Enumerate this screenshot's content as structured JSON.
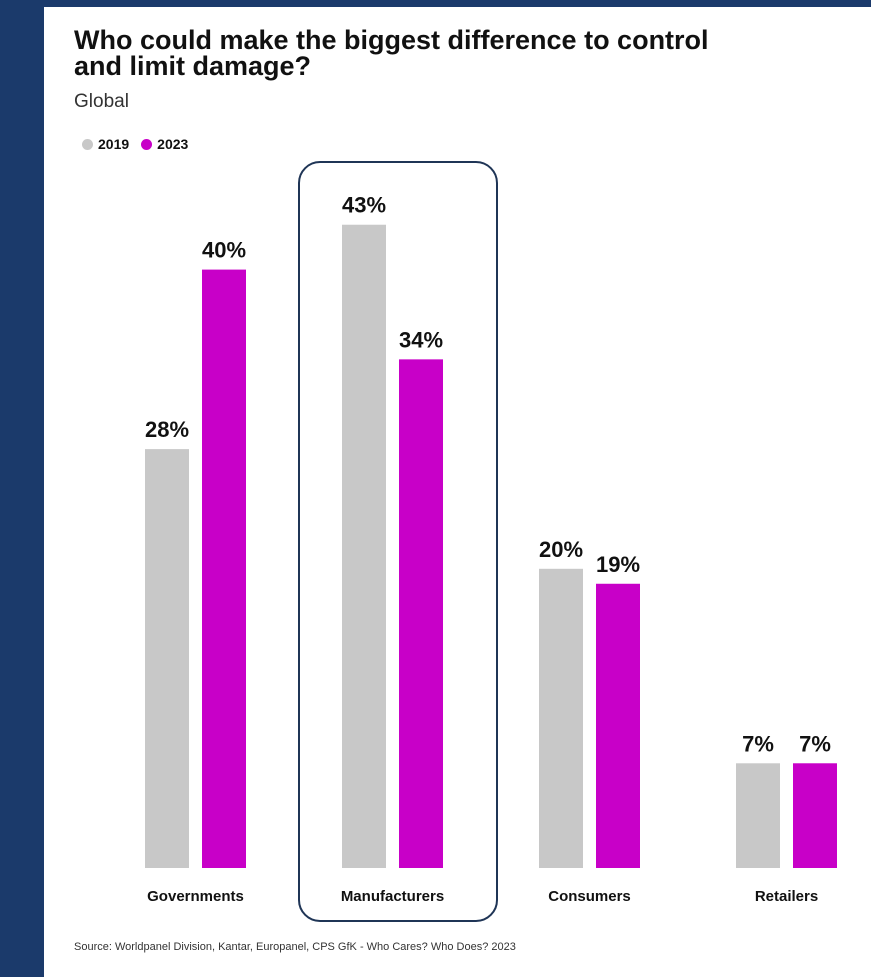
{
  "header": {
    "title": "Who could make the biggest difference to control and limit damage?",
    "subtitle": "Global"
  },
  "legend": [
    {
      "label": "2019",
      "color": "#c8c8c8"
    },
    {
      "label": "2023",
      "color": "#c800c8"
    }
  ],
  "colors": {
    "background": "#1b3a6b",
    "highlight_border": "#1f3556"
  },
  "highlighted_category": "Manufacturers",
  "source": "Source: Worldpanel Division, Kantar, Europanel, CPS GfK - Who Cares? Who Does? 2023",
  "chart_data": {
    "type": "bar",
    "title": "Who could make the biggest difference to control and limit damage?",
    "subtitle": "Global",
    "categories": [
      "Governments",
      "Manufacturers",
      "Consumers",
      "Retailers"
    ],
    "series": [
      {
        "name": "2019",
        "color": "#c8c8c8",
        "values": [
          28,
          43,
          20,
          7
        ]
      },
      {
        "name": "2023",
        "color": "#c800c8",
        "values": [
          40,
          34,
          19,
          7
        ]
      }
    ],
    "data_labels": [
      [
        "28%",
        "43%",
        "20%",
        "7%"
      ],
      [
        "40%",
        "34%",
        "19%",
        "7%"
      ]
    ],
    "ylim": [
      0,
      43
    ],
    "grid": false,
    "legend": "top-left"
  }
}
